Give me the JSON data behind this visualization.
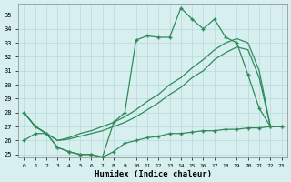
{
  "xlabel": "Humidex (Indice chaleur)",
  "x": [
    0,
    1,
    2,
    3,
    4,
    5,
    6,
    7,
    8,
    9,
    10,
    11,
    12,
    13,
    14,
    15,
    16,
    17,
    18,
    19,
    20,
    21,
    22,
    23
  ],
  "line_jagged": [
    28.0,
    27.0,
    26.5,
    25.5,
    25.2,
    25.0,
    25.0,
    24.8,
    27.3,
    28.0,
    33.2,
    33.5,
    33.4,
    33.4,
    35.5,
    34.7,
    34.0,
    34.7,
    33.4,
    33.0,
    30.7,
    28.3,
    27.0,
    27.0
  ],
  "line_upper": [
    28.0,
    27.0,
    26.5,
    26.0,
    26.2,
    26.5,
    26.7,
    27.0,
    27.3,
    27.7,
    28.2,
    28.8,
    29.3,
    30.0,
    30.5,
    31.2,
    31.8,
    32.5,
    33.0,
    33.3,
    33.0,
    31.0,
    27.0,
    27.0
  ],
  "line_lower": [
    28.0,
    27.0,
    26.5,
    26.0,
    26.1,
    26.3,
    26.5,
    26.7,
    27.0,
    27.3,
    27.7,
    28.2,
    28.7,
    29.3,
    29.8,
    30.5,
    31.0,
    31.8,
    32.3,
    32.7,
    32.5,
    30.5,
    27.0,
    27.0
  ],
  "line_bottom": [
    26.0,
    26.5,
    26.5,
    25.5,
    25.2,
    25.0,
    25.0,
    24.8,
    25.2,
    25.8,
    26.0,
    26.2,
    26.3,
    26.5,
    26.5,
    26.6,
    26.7,
    26.7,
    26.8,
    26.8,
    26.9,
    26.9,
    27.0,
    27.0
  ],
  "color": "#2e8b57",
  "bg_color": "#d8eff0",
  "grid_color": "#b8d8da",
  "ylim_min": 24.8,
  "ylim_max": 35.8,
  "yticks": [
    25,
    26,
    27,
    28,
    29,
    30,
    31,
    32,
    33,
    34,
    35
  ],
  "xticks": [
    0,
    1,
    2,
    3,
    4,
    5,
    6,
    7,
    8,
    9,
    10,
    11,
    12,
    13,
    14,
    15,
    16,
    17,
    18,
    19,
    20,
    21,
    22,
    23
  ],
  "marker": "+",
  "markersize": 3.5,
  "linewidth": 0.9
}
